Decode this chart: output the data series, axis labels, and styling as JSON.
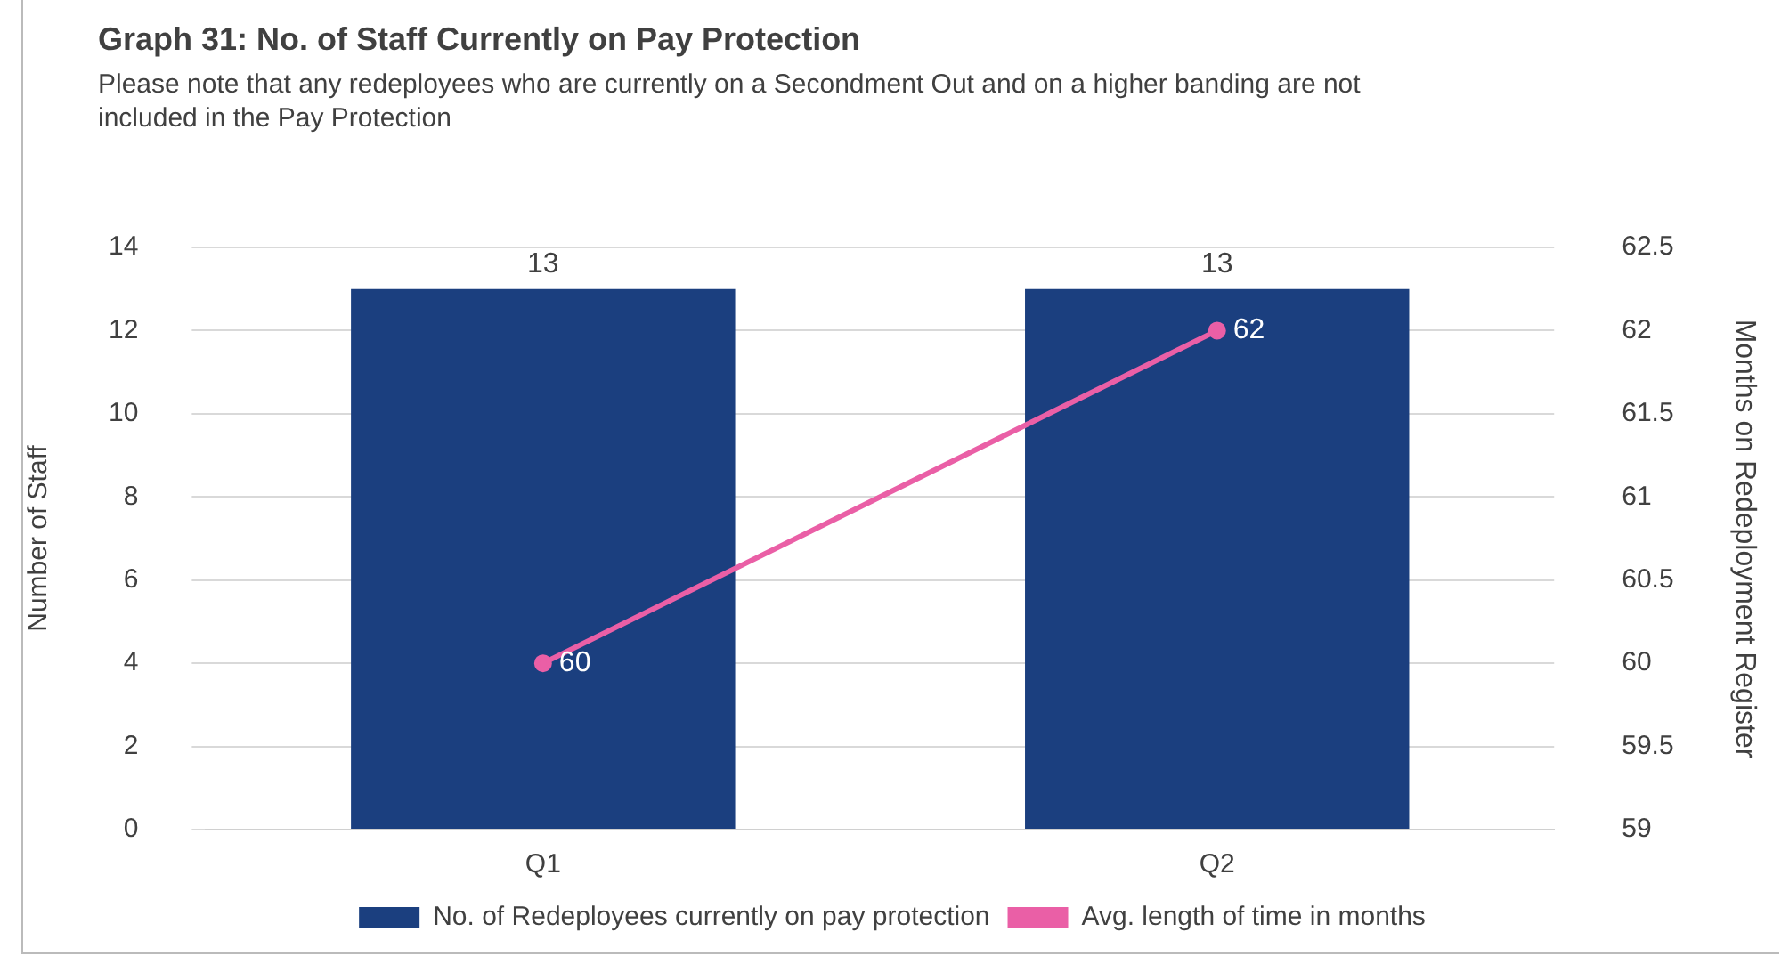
{
  "chart_data": {
    "type": "bar",
    "title": "Graph 31: No. of Staff Currently on Pay Protection",
    "subtitle": "Please note that any redeployees who are currently on a Secondment Out and on  a higher banding are not included in the Pay Protection",
    "ylabel": "Number of Staff",
    "y2label": "Months on Redeployment Register",
    "categories": [
      "Q1",
      "Q2"
    ],
    "series": [
      {
        "name": "No. of Redeployees currently on pay protection",
        "color": "#1b3f7f",
        "values": [
          13,
          13
        ]
      },
      {
        "name": "Avg. length of time in months",
        "type": "line",
        "axis": "y2",
        "color": "#ea5fa6",
        "values": [
          60,
          62
        ]
      }
    ],
    "ylim": [
      0,
      14
    ],
    "yticks": [
      0,
      2,
      4,
      6,
      8,
      10,
      12,
      14
    ],
    "y2lim": [
      59,
      62.5
    ],
    "y2ticks": [
      59,
      59.5,
      60,
      60.5,
      61,
      61.5,
      62,
      62.5
    ],
    "grid": "y",
    "legend": "bottom",
    "marker": "circle",
    "line_style": "solid",
    "data_labels": true
  }
}
